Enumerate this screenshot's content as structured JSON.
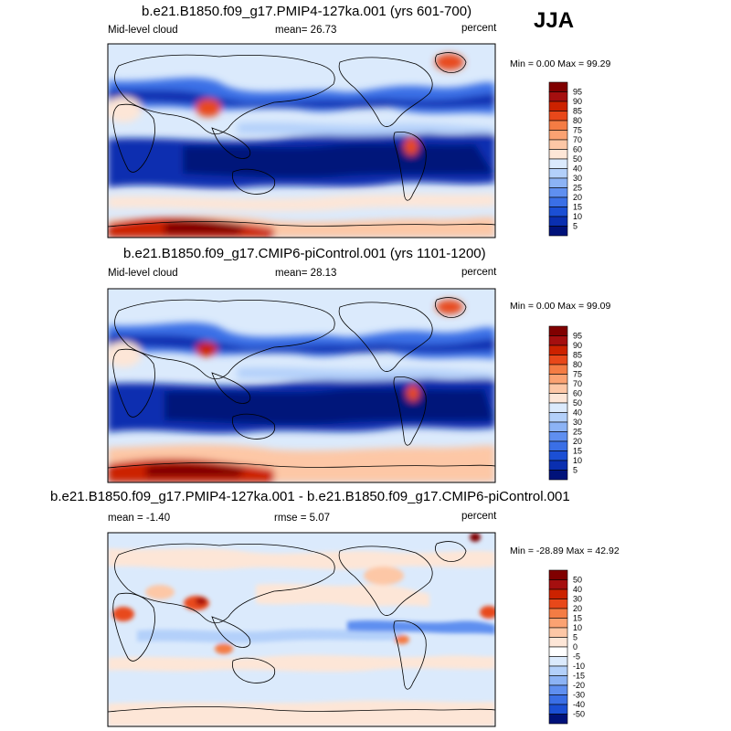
{
  "season_label": "JJA",
  "chart_data": [
    {
      "type": "heatmap",
      "title": "b.e21.B1850.f09_g17.PMIP4-127ka.001 (yrs 601-700)",
      "left_label": "Mid-level cloud",
      "center_label": "mean=  26.73",
      "units": "percent",
      "minmax": "Min =  0.00 Max =  99.29",
      "colorbar_labels": [
        "95",
        "90",
        "85",
        "80",
        "75",
        "70",
        "60",
        "50",
        "40",
        "30",
        "25",
        "20",
        "15",
        "10",
        "5"
      ],
      "colorbar_colors": [
        "#800000",
        "#a50f0f",
        "#cc2200",
        "#e8481a",
        "#f47c44",
        "#fba272",
        "#fdc7a6",
        "#fde6d7",
        "#dbeafc",
        "#b3d0fa",
        "#8cb3f5",
        "#5f8ff0",
        "#3a6fe6",
        "#1b4fd4",
        "#0a2fb0",
        "#00127a"
      ],
      "map_background": "#dbeafc"
    },
    {
      "type": "heatmap",
      "title": "b.e21.B1850.f09_g17.CMIP6-piControl.001 (yrs 1101-1200)",
      "left_label": "Mid-level cloud",
      "center_label": "mean=  28.13",
      "units": "percent",
      "minmax": "Min =  0.00 Max =  99.09",
      "colorbar_labels": [
        "95",
        "90",
        "85",
        "80",
        "75",
        "70",
        "60",
        "50",
        "40",
        "30",
        "25",
        "20",
        "15",
        "10",
        "5"
      ],
      "colorbar_colors": [
        "#800000",
        "#a50f0f",
        "#cc2200",
        "#e8481a",
        "#f47c44",
        "#fba272",
        "#fdc7a6",
        "#fde6d7",
        "#dbeafc",
        "#b3d0fa",
        "#8cb3f5",
        "#5f8ff0",
        "#3a6fe6",
        "#1b4fd4",
        "#0a2fb0",
        "#00127a"
      ],
      "map_background": "#dbeafc"
    },
    {
      "type": "heatmap",
      "title": "b.e21.B1850.f09_g17.PMIP4-127ka.001 - b.e21.B1850.f09_g17.CMIP6-piControl.001",
      "left_label": "mean =  -1.40",
      "center_label": "rmse =   5.07",
      "units": "percent",
      "minmax": "Min = -28.89 Max =  42.92",
      "colorbar_labels": [
        "50",
        "40",
        "30",
        "20",
        "15",
        "10",
        "5",
        "0",
        "-5",
        "-10",
        "-15",
        "-20",
        "-30",
        "-40",
        "-50"
      ],
      "colorbar_colors": [
        "#800000",
        "#a50f0f",
        "#cc2200",
        "#e8481a",
        "#f47c44",
        "#fba272",
        "#fdc7a6",
        "#fde6d7",
        "#ffffff",
        "#dbeafc",
        "#b3d0fa",
        "#8cb3f5",
        "#5f8ff0",
        "#3a6fe6",
        "#1b4fd4",
        "#00127a"
      ],
      "map_background": "#dbeafc"
    }
  ]
}
